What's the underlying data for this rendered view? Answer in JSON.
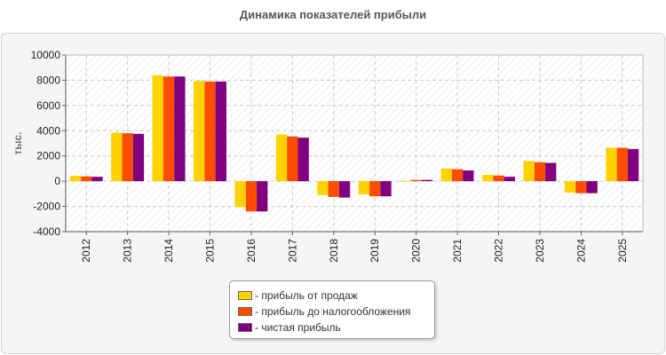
{
  "chart_data": {
    "type": "bar",
    "title": "Динамика показателей прибыли",
    "ylabel": "тыс.",
    "xlabel": "",
    "ylim": [
      -4000,
      10000
    ],
    "yticks": [
      -4000,
      -2000,
      0,
      2000,
      4000,
      6000,
      8000,
      10000
    ],
    "grid": true,
    "legend_position": "bottom",
    "categories": [
      "2012",
      "2013",
      "2014",
      "2015",
      "2016",
      "2017",
      "2018",
      "2019",
      "2020",
      "2021",
      "2022",
      "2023",
      "2024",
      "2025"
    ],
    "series": [
      {
        "name": "- прибыль от продаж",
        "color": "#ffd200",
        "values": [
          420,
          3850,
          8400,
          7950,
          -2050,
          3700,
          -1100,
          -1050,
          -50,
          1000,
          500,
          1600,
          -900,
          2650
        ]
      },
      {
        "name": "- прибыль до налогообложения",
        "color": "#ff4d00",
        "values": [
          380,
          3800,
          8300,
          7900,
          -2400,
          3550,
          -1250,
          -1200,
          100,
          950,
          450,
          1500,
          -950,
          2650
        ]
      },
      {
        "name": "- чистая прибыль",
        "color": "#800080",
        "values": [
          350,
          3750,
          8300,
          7900,
          -2400,
          3450,
          -1300,
          -1200,
          100,
          850,
          350,
          1450,
          -950,
          2550
        ]
      }
    ]
  }
}
